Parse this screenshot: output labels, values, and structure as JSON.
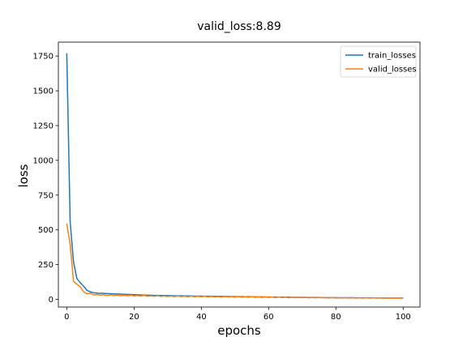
{
  "chart_data": {
    "type": "line",
    "title": "valid_loss:8.89",
    "xlabel": "epochs",
    "ylabel": "loss",
    "xlim": [
      -2.5,
      105
    ],
    "ylim": [
      -55,
      1850
    ],
    "xticks": [
      0,
      20,
      40,
      60,
      80,
      100
    ],
    "yticks": [
      0,
      250,
      500,
      750,
      1000,
      1250,
      1500,
      1750
    ],
    "grid": false,
    "legend_position": "top-right",
    "colors": {
      "train_losses": "#1f77b4",
      "valid_losses": "#ff7f0e"
    },
    "x": [
      0,
      1,
      2,
      3,
      4,
      5,
      6,
      7,
      8,
      9,
      10,
      11,
      12,
      13,
      14,
      15,
      16,
      17,
      18,
      19,
      20,
      21,
      22,
      23,
      24,
      25,
      26,
      27,
      28,
      29,
      30,
      31,
      32,
      33,
      34,
      35,
      36,
      37,
      38,
      39,
      40,
      41,
      42,
      43,
      44,
      45,
      46,
      47,
      48,
      49,
      50,
      51,
      52,
      53,
      54,
      55,
      56,
      57,
      58,
      59,
      60,
      61,
      62,
      63,
      64,
      65,
      66,
      67,
      68,
      69,
      70,
      71,
      72,
      73,
      74,
      75,
      76,
      77,
      78,
      79,
      80,
      81,
      82,
      83,
      84,
      85,
      86,
      87,
      88,
      89,
      90,
      91,
      92,
      93,
      94,
      95,
      96,
      97,
      98,
      99,
      100
    ],
    "series": [
      {
        "name": "train_losses",
        "values": [
          1770,
          560,
          270,
          150,
          120,
          95,
          65,
          55,
          48,
          45,
          44,
          43,
          42,
          41,
          40,
          39,
          38,
          37,
          36,
          35,
          34,
          33,
          32,
          31,
          30,
          30,
          29,
          29,
          28,
          28,
          27,
          27,
          26,
          26,
          26,
          25,
          25,
          25,
          24,
          24,
          24,
          23,
          23,
          23,
          22,
          22,
          22,
          21,
          21,
          21,
          20,
          20,
          20,
          19,
          19,
          19,
          18,
          18,
          18,
          17,
          17,
          17,
          17,
          16,
          16,
          16,
          16,
          15,
          15,
          15,
          15,
          14,
          14,
          14,
          14,
          14,
          13,
          13,
          13,
          13,
          13,
          12,
          12,
          12,
          12,
          12,
          11,
          11,
          11,
          11,
          11,
          11,
          10,
          10,
          10,
          10,
          10,
          10,
          10,
          10,
          10
        ]
      },
      {
        "name": "valid_losses",
        "values": [
          545,
          400,
          130,
          110,
          90,
          55,
          40,
          45,
          32,
          35,
          30,
          33,
          28,
          34,
          27,
          32,
          26,
          30,
          25,
          31,
          25,
          28,
          24,
          29,
          23,
          26,
          22,
          27,
          21,
          25,
          21,
          24,
          20,
          25,
          20,
          23,
          19,
          24,
          19,
          22,
          19,
          23,
          18,
          22,
          18,
          21,
          17,
          22,
          17,
          20,
          16,
          21,
          16,
          19,
          15,
          20,
          15,
          18,
          14,
          19,
          14,
          17,
          13,
          18,
          13,
          16,
          12,
          17,
          12,
          15,
          12,
          16,
          11,
          14,
          11,
          15,
          11,
          13,
          10,
          14,
          10,
          12,
          10,
          13,
          10,
          12,
          9,
          12,
          9,
          11,
          9,
          11,
          9,
          11,
          9,
          10,
          9,
          10,
          9,
          9,
          8.89
        ]
      }
    ]
  }
}
